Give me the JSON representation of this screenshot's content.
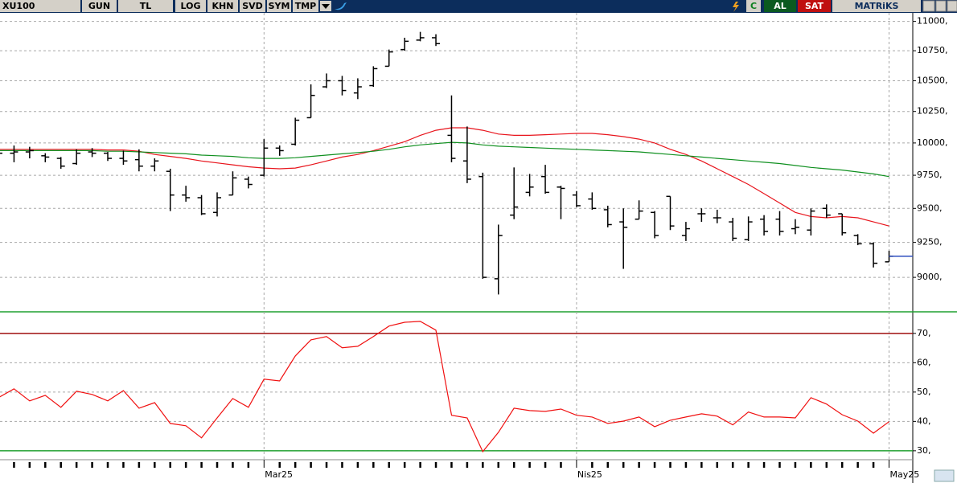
{
  "toolbar": {
    "symbol": "XU100",
    "left_buttons": [
      "GUN",
      "TL",
      "LOG",
      "KHN",
      "SVD",
      "SYM",
      "TMP"
    ],
    "right_buttons": [
      "C",
      "AL",
      "SAT",
      "MATRiKS"
    ]
  },
  "chart_data": [
    {
      "type": "ohlc",
      "log": true,
      "grid": true,
      "color": "#000000",
      "last_price_color": "#3050c0",
      "ylim": [
        8760,
        11060
      ],
      "yticks": [
        {
          "value": 9000,
          "label": "9000,"
        },
        {
          "value": 9250,
          "label": "9250,"
        },
        {
          "value": 9500,
          "label": "9500,"
        },
        {
          "value": 9750,
          "label": "9750,"
        },
        {
          "value": 10000,
          "label": "10000,"
        },
        {
          "value": 10250,
          "label": "10250,"
        },
        {
          "value": 10500,
          "label": "10500,"
        },
        {
          "value": 10750,
          "label": "10750,"
        },
        {
          "value": 11000,
          "label": "11000,"
        }
      ],
      "open": [
        9900,
        9920,
        9930,
        9900,
        9880,
        9840,
        9930,
        9920,
        9880,
        9870,
        9820,
        9780,
        9600,
        9580,
        9470,
        9600,
        9720,
        9750,
        9960,
        9990,
        10200,
        10450,
        10500,
        10400,
        10460,
        10620,
        10760,
        10840,
        10860,
        10060,
        9860,
        9740,
        8990,
        9450,
        9620,
        9740,
        9660,
        9600,
        9570,
        9490,
        9400,
        9420,
        9470,
        9590,
        9300,
        9460,
        9430,
        9400,
        9270,
        9420,
        9420,
        9350,
        9340,
        9500,
        9460,
        9300,
        9240,
        9110
      ],
      "high": [
        9960,
        9980,
        9970,
        9920,
        9890,
        9950,
        9960,
        9930,
        9940,
        9950,
        9880,
        9800,
        9670,
        9600,
        9620,
        9780,
        9740,
        10030,
        9980,
        10200,
        10470,
        10560,
        10540,
        10520,
        10620,
        10760,
        10860,
        10910,
        10890,
        10380,
        10130,
        9770,
        9380,
        9810,
        9760,
        9830,
        9670,
        9630,
        9620,
        9520,
        9500,
        9560,
        9480,
        9590,
        9400,
        9500,
        9490,
        9430,
        9440,
        9450,
        9480,
        9420,
        9500,
        9530,
        9460,
        9310,
        9250,
        9190
      ],
      "low": [
        9880,
        9850,
        9880,
        9850,
        9800,
        9830,
        9890,
        9860,
        9830,
        9780,
        9780,
        9480,
        9550,
        9450,
        9440,
        9600,
        9650,
        9740,
        9900,
        9980,
        10200,
        10440,
        10380,
        10350,
        10450,
        10620,
        10750,
        10830,
        10790,
        9850,
        9690,
        8990,
        8880,
        9420,
        9590,
        9610,
        9420,
        9510,
        9490,
        9360,
        9060,
        9420,
        9280,
        9340,
        9260,
        9400,
        9390,
        9260,
        9260,
        9300,
        9300,
        9310,
        9300,
        9430,
        9300,
        9230,
        9070,
        9110
      ],
      "close": [
        9920,
        9930,
        9940,
        9890,
        9820,
        9920,
        9920,
        9880,
        9860,
        9820,
        9860,
        9600,
        9580,
        9460,
        9580,
        9730,
        9680,
        9960,
        9940,
        10180,
        10380,
        10500,
        10420,
        10450,
        10600,
        10740,
        10830,
        10860,
        10810,
        9880,
        9720,
        9000,
        9300,
        9510,
        9660,
        9620,
        9650,
        9520,
        9500,
        9380,
        9360,
        9480,
        9300,
        9370,
        9350,
        9460,
        9430,
        9280,
        9400,
        9330,
        9330,
        9360,
        9480,
        9450,
        9320,
        9240,
        9100,
        9150
      ],
      "overlays": [
        {
          "color": "#e8141c",
          "values": [
            9950,
            9950,
            9950,
            9950,
            9950,
            9950,
            9950,
            9945,
            9945,
            9935,
            9910,
            9895,
            9880,
            9860,
            9845,
            9830,
            9815,
            9805,
            9800,
            9805,
            9830,
            9860,
            9890,
            9910,
            9940,
            9975,
            10010,
            10060,
            10100,
            10120,
            10120,
            10100,
            10070,
            10060,
            10060,
            10065,
            10070,
            10075,
            10075,
            10065,
            10050,
            10030,
            10000,
            9950,
            9910,
            9860,
            9800,
            9740,
            9680,
            9610,
            9540,
            9470,
            9440,
            9430,
            9440,
            9430,
            9400,
            9370
          ]
        },
        {
          "color": "#109020",
          "values": [
            9940,
            9940,
            9940,
            9940,
            9940,
            9940,
            9940,
            9935,
            9935,
            9930,
            9925,
            9920,
            9915,
            9905,
            9900,
            9895,
            9885,
            9880,
            9880,
            9885,
            9895,
            9905,
            9915,
            9925,
            9935,
            9950,
            9970,
            9985,
            9995,
            10005,
            10000,
            9985,
            9975,
            9970,
            9965,
            9960,
            9955,
            9950,
            9945,
            9940,
            9935,
            9930,
            9920,
            9910,
            9900,
            9890,
            9880,
            9870,
            9860,
            9850,
            9840,
            9825,
            9810,
            9800,
            9790,
            9775,
            9760,
            9740
          ]
        }
      ]
    },
    {
      "type": "line",
      "color": "#f01010",
      "grid": true,
      "categories": [
        null,
        null,
        null,
        null,
        null,
        null,
        null,
        null,
        null,
        null,
        null,
        null,
        null,
        null,
        null,
        null,
        null,
        "Mar25",
        null,
        null,
        null,
        null,
        null,
        null,
        null,
        null,
        null,
        null,
        null,
        null,
        null,
        null,
        null,
        null,
        null,
        null,
        null,
        "Nis25",
        null,
        null,
        null,
        null,
        null,
        null,
        null,
        null,
        null,
        null,
        null,
        null,
        null,
        null,
        null,
        null,
        null,
        null,
        null,
        "May25"
      ],
      "values": [
        48.1,
        51.1,
        47,
        48.9,
        44.8,
        50.3,
        49.2,
        47,
        50.5,
        44.5,
        46.4,
        39.3,
        38.5,
        34.4,
        41.2,
        47.8,
        44.8,
        54.4,
        53.8,
        62.3,
        67.8,
        68.9,
        65.1,
        65.6,
        68.9,
        72.5,
        73.8,
        74.1,
        71.1,
        42.1,
        41.2,
        29.7,
        36.3,
        44.5,
        43.7,
        43.4,
        44.2,
        42.1,
        41.5,
        39.3,
        40.1,
        41.5,
        38.2,
        40.4,
        41.5,
        42.6,
        41.8,
        38.8,
        43.2,
        41.5,
        41.5,
        41.2,
        48.1,
        45.9,
        42.3,
        40.1,
        36,
        39.9
      ],
      "ylim": [
        27.5,
        76.8
      ],
      "yticks": [
        {
          "value": 30,
          "label": "30,"
        },
        {
          "value": 40,
          "label": "40,"
        },
        {
          "value": 50,
          "label": "50,"
        },
        {
          "value": 60,
          "label": "60,"
        },
        {
          "value": 70,
          "label": "70,"
        }
      ],
      "reference_lines": [
        {
          "value": 70,
          "color": "#a01010"
        },
        {
          "value": 30,
          "color": "#20a030"
        }
      ]
    }
  ]
}
